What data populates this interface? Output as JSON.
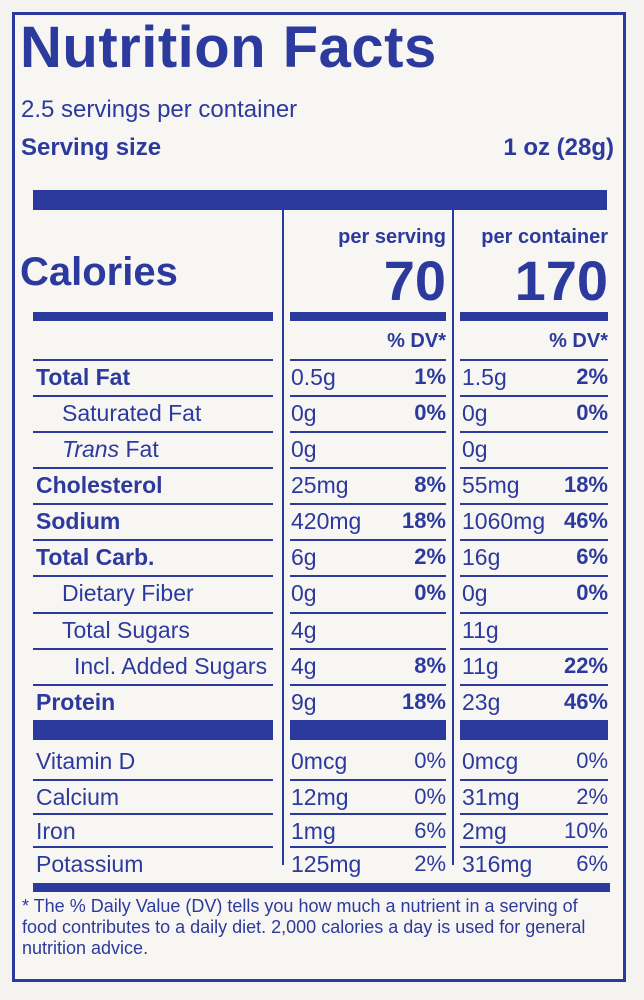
{
  "title": "Nutrition Facts",
  "servings_per_container": "2.5 servings per container",
  "serving_size_label": "Serving size",
  "serving_size_value": "1 oz (28g)",
  "calories_label": "Calories",
  "col1_header": "per serving",
  "col2_header": "per container",
  "col1_calories": "70",
  "col2_calories": "170",
  "dv_header": "% DV*",
  "nutrients": [
    {
      "label": "Total Fat",
      "s_amt": "0.5g",
      "s_dv": "1%",
      "c_amt": "1.5g",
      "c_dv": "2%"
    },
    {
      "label": "Saturated Fat",
      "s_amt": "0g",
      "s_dv": "0%",
      "c_amt": "0g",
      "c_dv": "0%"
    },
    {
      "label_italic": "Trans",
      "label_rest": " Fat",
      "s_amt": "0g",
      "s_dv": "",
      "c_amt": "0g",
      "c_dv": ""
    },
    {
      "label": "Cholesterol",
      "s_amt": "25mg",
      "s_dv": "8%",
      "c_amt": "55mg",
      "c_dv": "18%"
    },
    {
      "label": "Sodium",
      "s_amt": "420mg",
      "s_dv": "18%",
      "c_amt": "1060mg",
      "c_dv": "46%"
    },
    {
      "label": "Total Carb.",
      "s_amt": "6g",
      "s_dv": "2%",
      "c_amt": "16g",
      "c_dv": "6%"
    },
    {
      "label": "Dietary Fiber",
      "s_amt": "0g",
      "s_dv": "0%",
      "c_amt": "0g",
      "c_dv": "0%"
    },
    {
      "label": "Total Sugars",
      "s_amt": "4g",
      "s_dv": "",
      "c_amt": "11g",
      "c_dv": ""
    },
    {
      "label": "Incl. Added Sugars",
      "s_amt": "4g",
      "s_dv": "8%",
      "c_amt": "11g",
      "c_dv": "22%"
    },
    {
      "label": "Protein",
      "s_amt": "9g",
      "s_dv": "18%",
      "c_amt": "23g",
      "c_dv": "46%"
    }
  ],
  "vitamins": [
    {
      "label": "Vitamin D",
      "s_amt": "0mcg",
      "s_dv": "0%",
      "c_amt": "0mcg",
      "c_dv": "0%"
    },
    {
      "label": "Calcium",
      "s_amt": "12mg",
      "s_dv": "0%",
      "c_amt": "31mg",
      "c_dv": "2%"
    },
    {
      "label": "Iron",
      "s_amt": "1mg",
      "s_dv": "6%",
      "c_amt": "2mg",
      "c_dv": "10%"
    },
    {
      "label": "Potassium",
      "s_amt": "125mg",
      "s_dv": "2%",
      "c_amt": "316mg",
      "c_dv": "6%"
    }
  ],
  "footnote": "* The % Daily Value (DV) tells you how much a nutrient in a serving of food contributes to a daily diet. 2,000 calories a day is used for general nutrition advice.",
  "colors": {
    "ink": "#2c3a9e",
    "background": "#f4f3ef"
  }
}
